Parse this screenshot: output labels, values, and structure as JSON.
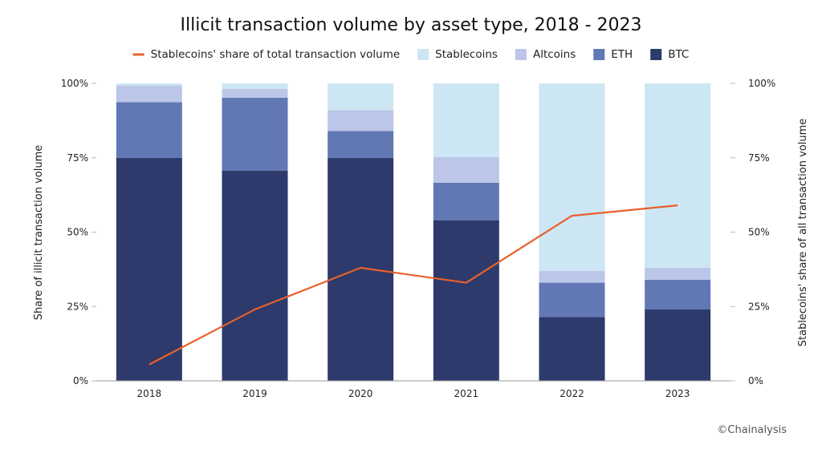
{
  "chart_data": {
    "type": "bar",
    "stacked": true,
    "title": "Illicit transaction volume by asset type, 2018 - 2023",
    "ylabel": "Share of illicit transaction volume",
    "y2label": "Stablecoins' share of all transaction volume",
    "categories": [
      "2018",
      "2019",
      "2020",
      "2021",
      "2022",
      "2023"
    ],
    "ylim": [
      0,
      100
    ],
    "y_ticks": [
      "0%",
      "25%",
      "50%",
      "75%",
      "100%"
    ],
    "y2_ticks": [
      "0%",
      "25%",
      "50%",
      "75%",
      "100%"
    ],
    "series": [
      {
        "name": "BTC",
        "kind": "bar",
        "color": "#2d3a6b",
        "values": [
          75,
          70.7,
          75,
          54,
          21.5,
          24
        ]
      },
      {
        "name": "ETH",
        "kind": "bar",
        "color": "#6278b5",
        "values": [
          18.7,
          24.5,
          9,
          12.6,
          11.5,
          10
        ]
      },
      {
        "name": "Altcoins",
        "kind": "bar",
        "color": "#bcc6e8",
        "values": [
          5.6,
          3,
          7,
          8.6,
          4,
          4
        ]
      },
      {
        "name": "Stablecoins",
        "kind": "bar",
        "color": "#cde6f4",
        "values": [
          0.7,
          1.8,
          9,
          24.8,
          63,
          62
        ]
      },
      {
        "name": "Stablecoins' share of total transaction volume",
        "kind": "line",
        "axis": "right",
        "color": "#e8602c",
        "values": [
          5.5,
          24,
          38,
          33,
          55.5,
          59
        ]
      }
    ],
    "legend": {
      "position": "top",
      "items": [
        {
          "label": "Stablecoins' share of total transaction volume",
          "color": "#e8602c",
          "marker": "line"
        },
        {
          "label": "Stablecoins",
          "color": "#cde6f4",
          "marker": "square"
        },
        {
          "label": "Altcoins",
          "color": "#bcc6e8",
          "marker": "square"
        },
        {
          "label": "ETH",
          "color": "#6278b5",
          "marker": "square"
        },
        {
          "label": "BTC",
          "color": "#2d3a6b",
          "marker": "square"
        }
      ]
    },
    "grid": false
  },
  "credit": "©Chainalysis"
}
